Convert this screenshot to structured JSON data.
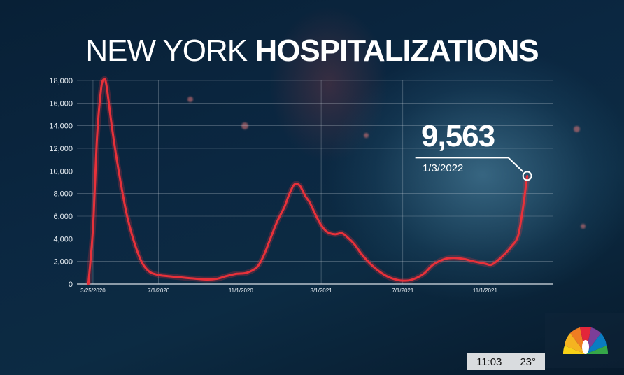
{
  "title": {
    "light": "NEW YORK ",
    "bold": "HOSPITALIZATIONS"
  },
  "callout": {
    "value": "9,563",
    "date": "1/3/2022"
  },
  "status": {
    "time": "11:03",
    "temperature": "23°"
  },
  "logo": "nbc-peacock-icon",
  "colors": {
    "line": "#e8313a",
    "text": "#ffffff",
    "grid": "#c9d2da"
  },
  "chart_data": {
    "type": "line",
    "title": "NEW YORK HOSPITALIZATIONS",
    "ylim": [
      0,
      18000
    ],
    "yticks": [
      0,
      2000,
      4000,
      6000,
      8000,
      10000,
      12000,
      14000,
      16000,
      18000
    ],
    "ytick_labels": [
      "0",
      "2,000",
      "4,000",
      "6,000",
      "8,000",
      "10,000",
      "12,000",
      "14,000",
      "16,000",
      "18,000"
    ],
    "xlim": [
      "2020-03-01",
      "2022-02-10"
    ],
    "xticks": [
      "2020-03-25",
      "2020-07-01",
      "2020-11-01",
      "2021-03-01",
      "2021-07-01",
      "2021-11-01"
    ],
    "xtick_labels": [
      "3/25/2020",
      "7/1/2020",
      "11/1/2020",
      "3/1/2021",
      "7/1/2021",
      "11/1/2021"
    ],
    "grid": true,
    "series": [
      {
        "points": [
          [
            "2020-03-18",
            0
          ],
          [
            "2020-03-25",
            5000
          ],
          [
            "2020-03-31",
            13000
          ],
          [
            "2020-04-06",
            17200
          ],
          [
            "2020-04-10",
            18100
          ],
          [
            "2020-04-14",
            17600
          ],
          [
            "2020-04-22",
            14000
          ],
          [
            "2020-05-01",
            10500
          ],
          [
            "2020-05-15",
            6000
          ],
          [
            "2020-06-01",
            2600
          ],
          [
            "2020-06-15",
            1200
          ],
          [
            "2020-07-01",
            800
          ],
          [
            "2020-07-15",
            700
          ],
          [
            "2020-08-01",
            600
          ],
          [
            "2020-08-20",
            500
          ],
          [
            "2020-09-10",
            400
          ],
          [
            "2020-09-25",
            450
          ],
          [
            "2020-10-10",
            700
          ],
          [
            "2020-10-25",
            900
          ],
          [
            "2020-11-10",
            1000
          ],
          [
            "2020-11-25",
            1500
          ],
          [
            "2020-12-05",
            2500
          ],
          [
            "2020-12-15",
            4000
          ],
          [
            "2020-12-25",
            5500
          ],
          [
            "2021-01-05",
            6800
          ],
          [
            "2021-01-12",
            7900
          ],
          [
            "2021-01-20",
            8800
          ],
          [
            "2021-01-28",
            8700
          ],
          [
            "2021-02-05",
            7800
          ],
          [
            "2021-02-12",
            7200
          ],
          [
            "2021-02-20",
            6200
          ],
          [
            "2021-03-01",
            5200
          ],
          [
            "2021-03-10",
            4600
          ],
          [
            "2021-03-22",
            4400
          ],
          [
            "2021-04-01",
            4500
          ],
          [
            "2021-04-10",
            4100
          ],
          [
            "2021-04-20",
            3500
          ],
          [
            "2021-05-01",
            2600
          ],
          [
            "2021-05-15",
            1700
          ],
          [
            "2021-06-01",
            900
          ],
          [
            "2021-06-15",
            500
          ],
          [
            "2021-07-01",
            300
          ],
          [
            "2021-07-15",
            400
          ],
          [
            "2021-08-01",
            900
          ],
          [
            "2021-08-15",
            1700
          ],
          [
            "2021-09-01",
            2200
          ],
          [
            "2021-09-15",
            2300
          ],
          [
            "2021-10-01",
            2200
          ],
          [
            "2021-10-15",
            2000
          ],
          [
            "2021-11-01",
            1800
          ],
          [
            "2021-11-10",
            1700
          ],
          [
            "2021-11-20",
            2100
          ],
          [
            "2021-12-01",
            2700
          ],
          [
            "2021-12-10",
            3300
          ],
          [
            "2021-12-20",
            4200
          ],
          [
            "2021-12-27",
            6500
          ],
          [
            "2022-01-03",
            9563
          ]
        ]
      }
    ],
    "annotations": [
      {
        "x": "2022-01-03",
        "y": 9563,
        "label": "9,563",
        "sublabel": "1/3/2022"
      }
    ]
  }
}
